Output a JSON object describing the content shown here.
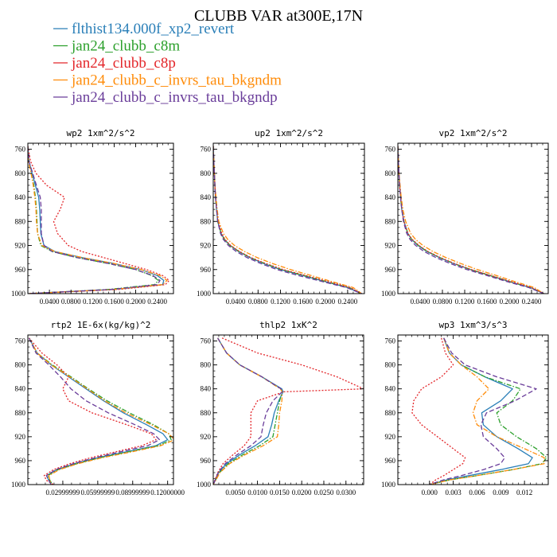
{
  "title": "CLUBB VAR at300E,17N",
  "legend": [
    {
      "label": "flthist134.000f_xp2_revert",
      "color": "#2a7fb8",
      "dash": "solid"
    },
    {
      "label": "jan24_clubb_c8m",
      "color": "#2ca02c",
      "dash": "dashdot"
    },
    {
      "label": "jan24_clubb_c8p",
      "color": "#e3262a",
      "dash": "dot"
    },
    {
      "label": "jan24_clubb_c_invrs_tau_bkgndm",
      "color": "#ff8c0a",
      "dash": "dashdot"
    },
    {
      "label": "jan24_clubb_c_invrs_tau_bkgndp",
      "color": "#6a3d9a",
      "dash": "dash"
    }
  ],
  "chart_data": [
    {
      "type": "line",
      "title": "wp2  1xm^2/s^2",
      "xlim": [
        0,
        0.27
      ],
      "ylim": [
        1000,
        750
      ],
      "xticks": [
        "0.0400",
        "0.0800",
        "0.1200",
        "0.1600",
        "0.2000",
        "0.2400"
      ],
      "xtick_values": [
        0.04,
        0.08,
        0.12,
        0.16,
        0.2,
        0.24
      ],
      "yticks": [
        "760",
        "800",
        "840",
        "880",
        "920",
        "960",
        "1000"
      ],
      "ytick_values": [
        760,
        800,
        840,
        880,
        920,
        960,
        1000
      ],
      "y": [
        755,
        780,
        800,
        820,
        840,
        860,
        880,
        900,
        920,
        930,
        940,
        950,
        960,
        970,
        978,
        985,
        993,
        1000
      ],
      "series": [
        {
          "values": [
            0.0,
            0.002,
            0.008,
            0.014,
            0.02,
            0.022,
            0.023,
            0.024,
            0.03,
            0.05,
            0.1,
            0.16,
            0.21,
            0.24,
            0.252,
            0.25,
            0.16,
            0.0
          ]
        },
        {
          "values": [
            0.0,
            0.001,
            0.006,
            0.011,
            0.014,
            0.016,
            0.017,
            0.018,
            0.024,
            0.045,
            0.09,
            0.15,
            0.2,
            0.23,
            0.242,
            0.235,
            0.15,
            0.0
          ]
        },
        {
          "values": [
            0.0,
            0.005,
            0.015,
            0.035,
            0.068,
            0.06,
            0.048,
            0.055,
            0.075,
            0.1,
            0.14,
            0.18,
            0.22,
            0.25,
            0.262,
            0.255,
            0.17,
            0.0
          ]
        },
        {
          "values": [
            0.0,
            0.001,
            0.006,
            0.01,
            0.013,
            0.015,
            0.016,
            0.018,
            0.026,
            0.05,
            0.1,
            0.16,
            0.21,
            0.245,
            0.258,
            0.25,
            0.16,
            0.0
          ]
        },
        {
          "values": [
            0.0,
            0.002,
            0.009,
            0.016,
            0.023,
            0.025,
            0.025,
            0.025,
            0.03,
            0.045,
            0.09,
            0.15,
            0.2,
            0.232,
            0.245,
            0.24,
            0.155,
            0.0
          ]
        }
      ]
    },
    {
      "type": "line",
      "title": "up2  1xm^2/s^2",
      "xlim": [
        0,
        0.27
      ],
      "ylim": [
        1000,
        750
      ],
      "xticks": [
        "0.0400",
        "0.0800",
        "0.1200",
        "0.1600",
        "0.2000",
        "0.2400"
      ],
      "xtick_values": [
        0.04,
        0.08,
        0.12,
        0.16,
        0.2,
        0.24
      ],
      "yticks": [
        "760",
        "800",
        "840",
        "880",
        "920",
        "960",
        "1000"
      ],
      "ytick_values": [
        760,
        800,
        840,
        880,
        920,
        960,
        1000
      ],
      "y": [
        755,
        780,
        800,
        820,
        840,
        860,
        880,
        900,
        910,
        920,
        930,
        940,
        950,
        960,
        970,
        980,
        990,
        1000
      ],
      "series": [
        {
          "values": [
            0.0,
            0.001,
            0.002,
            0.003,
            0.004,
            0.006,
            0.008,
            0.014,
            0.02,
            0.03,
            0.045,
            0.065,
            0.09,
            0.12,
            0.16,
            0.2,
            0.24,
            0.265
          ]
        },
        {
          "values": [
            0.0,
            0.001,
            0.002,
            0.003,
            0.004,
            0.006,
            0.008,
            0.014,
            0.02,
            0.03,
            0.046,
            0.066,
            0.092,
            0.122,
            0.162,
            0.202,
            0.242,
            0.265
          ]
        },
        {
          "values": [
            0.0,
            0.001,
            0.002,
            0.003,
            0.004,
            0.006,
            0.009,
            0.015,
            0.021,
            0.031,
            0.047,
            0.067,
            0.094,
            0.125,
            0.165,
            0.205,
            0.245,
            0.265
          ]
        },
        {
          "values": [
            0.0,
            0.001,
            0.002,
            0.003,
            0.005,
            0.007,
            0.01,
            0.018,
            0.026,
            0.038,
            0.056,
            0.078,
            0.106,
            0.138,
            0.175,
            0.212,
            0.25,
            0.265
          ]
        },
        {
          "values": [
            0.0,
            0.001,
            0.002,
            0.003,
            0.004,
            0.006,
            0.008,
            0.013,
            0.018,
            0.027,
            0.041,
            0.06,
            0.085,
            0.114,
            0.152,
            0.195,
            0.238,
            0.265
          ]
        }
      ]
    },
    {
      "type": "line",
      "title": "vp2  1xm^2/s^2",
      "xlim": [
        0,
        0.27
      ],
      "ylim": [
        1000,
        750
      ],
      "xticks": [
        "0.0400",
        "0.0800",
        "0.1200",
        "0.1600",
        "0.2000",
        "0.2400"
      ],
      "xtick_values": [
        0.04,
        0.08,
        0.12,
        0.16,
        0.2,
        0.24
      ],
      "yticks": [
        "760",
        "800",
        "840",
        "880",
        "920",
        "960",
        "1000"
      ],
      "ytick_values": [
        760,
        800,
        840,
        880,
        920,
        960,
        1000
      ],
      "y": [
        755,
        780,
        800,
        820,
        840,
        860,
        880,
        900,
        910,
        920,
        930,
        940,
        950,
        960,
        970,
        980,
        990,
        1000
      ],
      "series": [
        {
          "values": [
            0.0,
            0.001,
            0.002,
            0.003,
            0.005,
            0.007,
            0.011,
            0.018,
            0.025,
            0.036,
            0.052,
            0.074,
            0.1,
            0.13,
            0.165,
            0.2,
            0.238,
            0.262
          ]
        },
        {
          "values": [
            0.0,
            0.001,
            0.002,
            0.003,
            0.005,
            0.007,
            0.011,
            0.018,
            0.025,
            0.037,
            0.053,
            0.075,
            0.101,
            0.131,
            0.166,
            0.201,
            0.239,
            0.262
          ]
        },
        {
          "values": [
            0.0,
            0.001,
            0.002,
            0.003,
            0.005,
            0.007,
            0.011,
            0.018,
            0.026,
            0.038,
            0.054,
            0.076,
            0.102,
            0.132,
            0.167,
            0.203,
            0.24,
            0.262
          ]
        },
        {
          "values": [
            0.0,
            0.001,
            0.002,
            0.004,
            0.006,
            0.009,
            0.014,
            0.023,
            0.032,
            0.045,
            0.063,
            0.086,
            0.113,
            0.143,
            0.177,
            0.21,
            0.245,
            0.262
          ]
        },
        {
          "values": [
            0.0,
            0.001,
            0.002,
            0.003,
            0.005,
            0.007,
            0.01,
            0.016,
            0.022,
            0.032,
            0.047,
            0.068,
            0.094,
            0.124,
            0.16,
            0.196,
            0.235,
            0.262
          ]
        }
      ]
    },
    {
      "type": "line",
      "title": "rtp2  1E-6x(kg/kg)^2",
      "xlim": [
        0,
        0.125
      ],
      "ylim": [
        1000,
        750
      ],
      "xticks": [
        "0.02999999",
        "0.05999999",
        "0.08999999",
        "0.12000000"
      ],
      "xtick_values": [
        0.03,
        0.06,
        0.09,
        0.12
      ],
      "yticks": [
        "760",
        "800",
        "840",
        "880",
        "920",
        "960",
        "1000"
      ],
      "ytick_values": [
        760,
        800,
        840,
        880,
        920,
        960,
        1000
      ],
      "y": [
        755,
        780,
        800,
        820,
        840,
        860,
        880,
        900,
        915,
        925,
        935,
        945,
        955,
        965,
        975,
        985,
        993,
        1000
      ],
      "series": [
        {
          "values": [
            0.001,
            0.008,
            0.02,
            0.035,
            0.05,
            0.065,
            0.082,
            0.102,
            0.116,
            0.12,
            0.11,
            0.085,
            0.06,
            0.04,
            0.025,
            0.016,
            0.018,
            0.02
          ]
        },
        {
          "values": [
            0.001,
            0.008,
            0.021,
            0.037,
            0.052,
            0.068,
            0.087,
            0.108,
            0.121,
            0.123,
            0.112,
            0.087,
            0.062,
            0.042,
            0.026,
            0.017,
            0.019,
            0.021
          ]
        },
        {
          "values": [
            0.001,
            0.012,
            0.025,
            0.035,
            0.03,
            0.035,
            0.055,
            0.085,
            0.106,
            0.11,
            0.098,
            0.076,
            0.054,
            0.036,
            0.022,
            0.014,
            0.016,
            0.022
          ]
        },
        {
          "values": [
            0.001,
            0.008,
            0.02,
            0.036,
            0.051,
            0.066,
            0.084,
            0.106,
            0.121,
            0.126,
            0.114,
            0.09,
            0.064,
            0.043,
            0.027,
            0.018,
            0.019,
            0.02
          ]
        },
        {
          "values": [
            0.001,
            0.007,
            0.018,
            0.028,
            0.037,
            0.05,
            0.069,
            0.092,
            0.108,
            0.113,
            0.103,
            0.08,
            0.058,
            0.039,
            0.024,
            0.016,
            0.018,
            0.02
          ]
        }
      ]
    },
    {
      "type": "line",
      "title": "thlp2  1xK^2",
      "xlim": [
        0,
        0.034
      ],
      "ylim": [
        1000,
        750
      ],
      "xticks": [
        "0.0050",
        "0.0100",
        "0.0150",
        "0.0200",
        "0.0250",
        "0.0300"
      ],
      "xtick_values": [
        0.005,
        0.01,
        0.015,
        0.02,
        0.025,
        0.03
      ],
      "yticks": [
        "760",
        "800",
        "840",
        "880",
        "920",
        "960",
        "1000"
      ],
      "ytick_values": [
        760,
        800,
        840,
        880,
        920,
        960,
        1000
      ],
      "y": [
        755,
        780,
        800,
        820,
        840,
        845,
        860,
        880,
        900,
        920,
        935,
        950,
        965,
        980,
        990,
        1000
      ],
      "series": [
        {
          "values": [
            0.001,
            0.003,
            0.006,
            0.011,
            0.0155,
            0.0158,
            0.0148,
            0.0138,
            0.0132,
            0.0124,
            0.0095,
            0.006,
            0.003,
            0.0012,
            0.0006,
            0.0
          ]
        },
        {
          "values": [
            0.001,
            0.003,
            0.006,
            0.011,
            0.0152,
            0.0156,
            0.015,
            0.0145,
            0.014,
            0.0135,
            0.0105,
            0.0067,
            0.0034,
            0.0014,
            0.0007,
            0.0
          ]
        },
        {
          "values": [
            0.002,
            0.01,
            0.02,
            0.028,
            0.034,
            0.016,
            0.01,
            0.0085,
            0.0085,
            0.0085,
            0.007,
            0.0045,
            0.0022,
            0.001,
            0.0005,
            0.0
          ]
        },
        {
          "values": [
            0.001,
            0.003,
            0.006,
            0.011,
            0.0152,
            0.0156,
            0.0155,
            0.015,
            0.0148,
            0.0145,
            0.0113,
            0.0072,
            0.0037,
            0.0015,
            0.0008,
            0.0
          ]
        },
        {
          "values": [
            0.001,
            0.003,
            0.006,
            0.011,
            0.0153,
            0.0156,
            0.0135,
            0.012,
            0.0113,
            0.0108,
            0.0085,
            0.0054,
            0.0027,
            0.0011,
            0.0006,
            0.0
          ]
        }
      ]
    },
    {
      "type": "line",
      "title": "wp3  1xm^3/s^3",
      "xlim": [
        -0.004,
        0.015
      ],
      "ylim": [
        1000,
        750
      ],
      "xticks": [
        "0.000",
        "0.003",
        "0.006",
        "0.009",
        "0.012"
      ],
      "xtick_values": [
        0.0,
        0.003,
        0.006,
        0.009,
        0.012
      ],
      "yticks": [
        "760",
        "800",
        "840",
        "880",
        "920",
        "960",
        "1000"
      ],
      "ytick_values": [
        760,
        800,
        840,
        880,
        920,
        960,
        1000
      ],
      "y": [
        755,
        780,
        800,
        820,
        840,
        860,
        880,
        900,
        920,
        940,
        955,
        965,
        975,
        985,
        992,
        1000
      ],
      "series": [
        {
          "values": [
            0.0018,
            0.0025,
            0.004,
            0.007,
            0.0105,
            0.009,
            0.0066,
            0.0068,
            0.0085,
            0.0112,
            0.013,
            0.0125,
            0.009,
            0.005,
            0.0022,
            0.0
          ]
        },
        {
          "values": [
            0.0018,
            0.0025,
            0.004,
            0.007,
            0.0115,
            0.0105,
            0.0085,
            0.009,
            0.011,
            0.0135,
            0.0148,
            0.0142,
            0.0105,
            0.006,
            0.0026,
            0.0
          ]
        },
        {
          "values": [
            0.0015,
            0.002,
            0.003,
            0.0015,
            -0.001,
            -0.002,
            -0.0022,
            -0.001,
            0.001,
            0.003,
            0.0045,
            0.0042,
            0.003,
            0.0018,
            0.0008,
            0.0
          ]
        },
        {
          "values": [
            0.0018,
            0.0025,
            0.004,
            0.006,
            0.0075,
            0.006,
            0.0055,
            0.006,
            0.0085,
            0.012,
            0.0145,
            0.0145,
            0.0105,
            0.006,
            0.0026,
            0.0
          ]
        },
        {
          "values": [
            0.0018,
            0.0028,
            0.0045,
            0.0085,
            0.0135,
            0.0108,
            0.0072,
            0.0065,
            0.0068,
            0.0085,
            0.0095,
            0.009,
            0.0068,
            0.004,
            0.0018,
            0.0
          ]
        }
      ]
    }
  ]
}
